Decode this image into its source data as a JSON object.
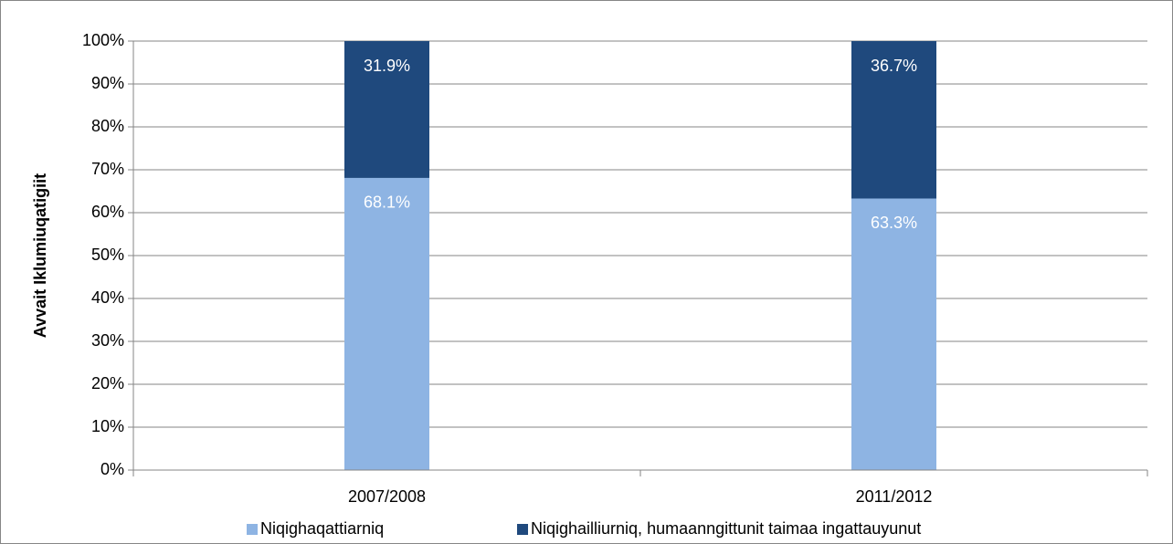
{
  "chart_data": {
    "type": "stacked_bar",
    "ylabel": "Avvait Iklumiuqatigiit",
    "categories": [
      "2007/2008",
      "2011/2012"
    ],
    "series": [
      {
        "name": "Niqighaqattiarniq",
        "color": "#8eb4e3",
        "values": [
          68.1,
          63.3
        ],
        "value_labels": [
          "68.1%",
          "63.3%"
        ]
      },
      {
        "name": "Niqighailliurniq, humaanngittunit taimaa ingattauyunut",
        "color": "#1f497d",
        "values": [
          31.9,
          36.7
        ],
        "value_labels": [
          "31.9%",
          "36.7%"
        ]
      }
    ],
    "ylim": [
      0,
      100
    ],
    "yticks": [
      {
        "value": 0,
        "label": "0%"
      },
      {
        "value": 10,
        "label": "10%"
      },
      {
        "value": 20,
        "label": "20%"
      },
      {
        "value": 30,
        "label": "30%"
      },
      {
        "value": 40,
        "label": "40%"
      },
      {
        "value": 50,
        "label": "50%"
      },
      {
        "value": 60,
        "label": "60%"
      },
      {
        "value": 70,
        "label": "70%"
      },
      {
        "value": 80,
        "label": "80%"
      },
      {
        "value": 90,
        "label": "90%"
      },
      {
        "value": 100,
        "label": "100%"
      }
    ],
    "grid": true,
    "legend": "bottom"
  }
}
